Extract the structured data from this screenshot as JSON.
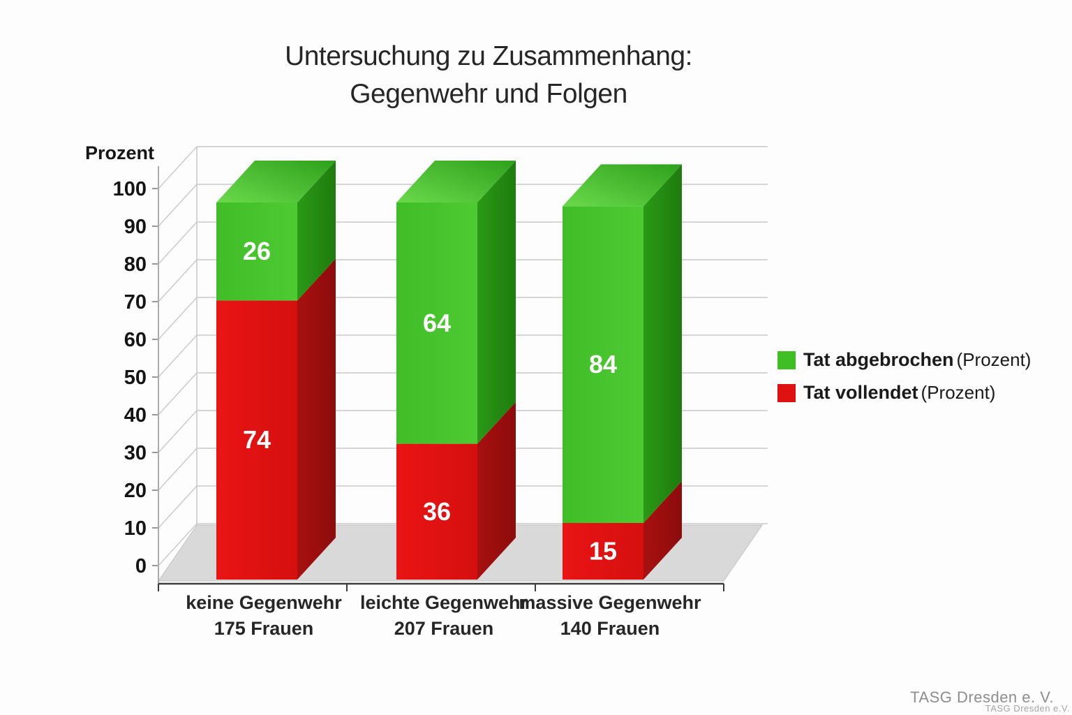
{
  "title": {
    "line1": "Untersuchung zu Zusammenhang:",
    "line2": "Gegenwehr und Folgen"
  },
  "legend": {
    "items": [
      {
        "label": "Tat abgebrochen",
        "suffix": "(Prozent)",
        "color": "#3fbf23"
      },
      {
        "label": "Tat vollendet",
        "suffix": "(Prozent)",
        "color": "#df1111"
      }
    ]
  },
  "footer": {
    "credit": "TASG Dresden e. V.",
    "watermark": "TASG Dresden e.V."
  },
  "chart_data": {
    "type": "bar",
    "stacked": true,
    "style": "3d",
    "title": "Untersuchung zu Zusammenhang: Gegenwehr und Folgen",
    "ylabel": "Prozent",
    "ylim": [
      0,
      100
    ],
    "yticks": [
      0,
      10,
      20,
      30,
      40,
      50,
      60,
      70,
      80,
      90,
      100
    ],
    "grid": true,
    "legend_position": "right",
    "categories": [
      "keine Gegenwehr",
      "leichte Gegenwehr",
      "massive Gegenwehr"
    ],
    "category_counts": [
      "175 Frauen",
      "207 Frauen",
      "140 Frauen"
    ],
    "series": [
      {
        "name": "Tat vollendet (Prozent)",
        "values": [
          74,
          36,
          15
        ],
        "faces": {
          "front": "#ea1414",
          "front2": "#d50f0f",
          "side": "#a81010",
          "side2": "#8d0c0c",
          "top": "#ef3a3a",
          "top2": "#b91212"
        }
      },
      {
        "name": "Tat abgebrochen (Prozent)",
        "values": [
          26,
          64,
          84
        ],
        "faces": {
          "front": "#40bd27",
          "front2": "#4ecb33",
          "side": "#2b9917",
          "side2": "#1d7c0d",
          "top": "#6ada4b",
          "top2": "#2fa01c"
        }
      }
    ],
    "colors": {
      "gridline": "#c9c9c9",
      "axis": "#ababab",
      "baseline": "#3c3c3c",
      "floor": "#d9d9d9",
      "floor_edge": "#c2c2c2",
      "value_label": "#ffffff"
    }
  }
}
